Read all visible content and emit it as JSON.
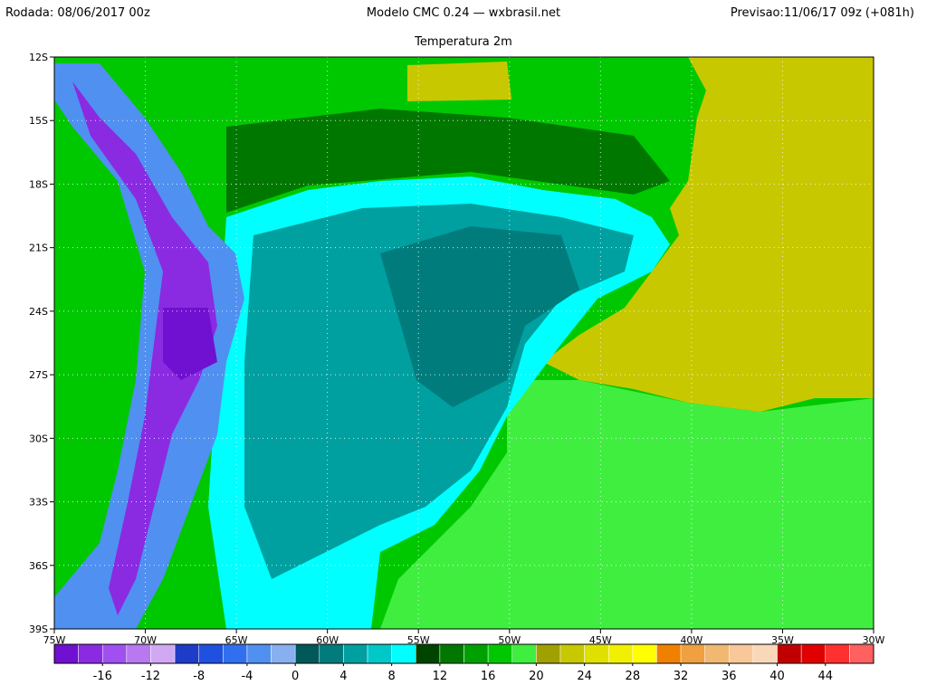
{
  "header": {
    "run": "Rodada: 08/06/2017 00z",
    "model": "Modelo CMC 0.24 — wxbrasil.net",
    "forecast": "Previsao:11/06/17 09z (+081h)",
    "title": "Temperatura 2m"
  },
  "map": {
    "lon_ticks": [
      {
        "value": -75,
        "label": "75W"
      },
      {
        "value": -70,
        "label": "70W"
      },
      {
        "value": -65,
        "label": "65W"
      },
      {
        "value": -60,
        "label": "60W"
      },
      {
        "value": -55,
        "label": "55W"
      },
      {
        "value": -50,
        "label": "50W"
      },
      {
        "value": -45,
        "label": "45W"
      },
      {
        "value": -40,
        "label": "40W"
      },
      {
        "value": -35,
        "label": "35W"
      },
      {
        "value": -30,
        "label": "30W"
      }
    ],
    "lat_ticks": [
      {
        "value": -12,
        "label": "12S"
      },
      {
        "value": -15,
        "label": "15S"
      },
      {
        "value": -18,
        "label": "18S"
      },
      {
        "value": -21,
        "label": "21S"
      },
      {
        "value": -24,
        "label": "24S"
      },
      {
        "value": -27,
        "label": "27S"
      },
      {
        "value": -30,
        "label": "30S"
      },
      {
        "value": -33,
        "label": "33S"
      },
      {
        "value": -36,
        "label": "36S"
      },
      {
        "value": -39,
        "label": "39S"
      }
    ],
    "lonlim": [
      -75,
      -30
    ],
    "latlim": [
      -12,
      -39
    ]
  },
  "colorbar": {
    "lim": [
      -20,
      48
    ],
    "ticks": [
      -16,
      -12,
      -8,
      -4,
      0,
      4,
      8,
      12,
      16,
      20,
      24,
      28,
      32,
      36,
      40,
      44
    ],
    "colors": [
      "#7010d0",
      "#8a2be2",
      "#a050f0",
      "#b878f0",
      "#d0a8f4",
      "#1e3cc8",
      "#2050e0",
      "#3070f0",
      "#5090f0",
      "#88b0f0",
      "#005858",
      "#007c7c",
      "#00a0a0",
      "#00c8c8",
      "#00ffff",
      "#004400",
      "#007800",
      "#00a000",
      "#00c800",
      "#40ee40",
      "#a0a000",
      "#c8c800",
      "#e0e000",
      "#f0f000",
      "#ffff00",
      "#f08000",
      "#f0a040",
      "#f0b870",
      "#f8c898",
      "#f8d8b8",
      "#c00000",
      "#e00000",
      "#ff3030",
      "#ff6060"
    ]
  }
}
